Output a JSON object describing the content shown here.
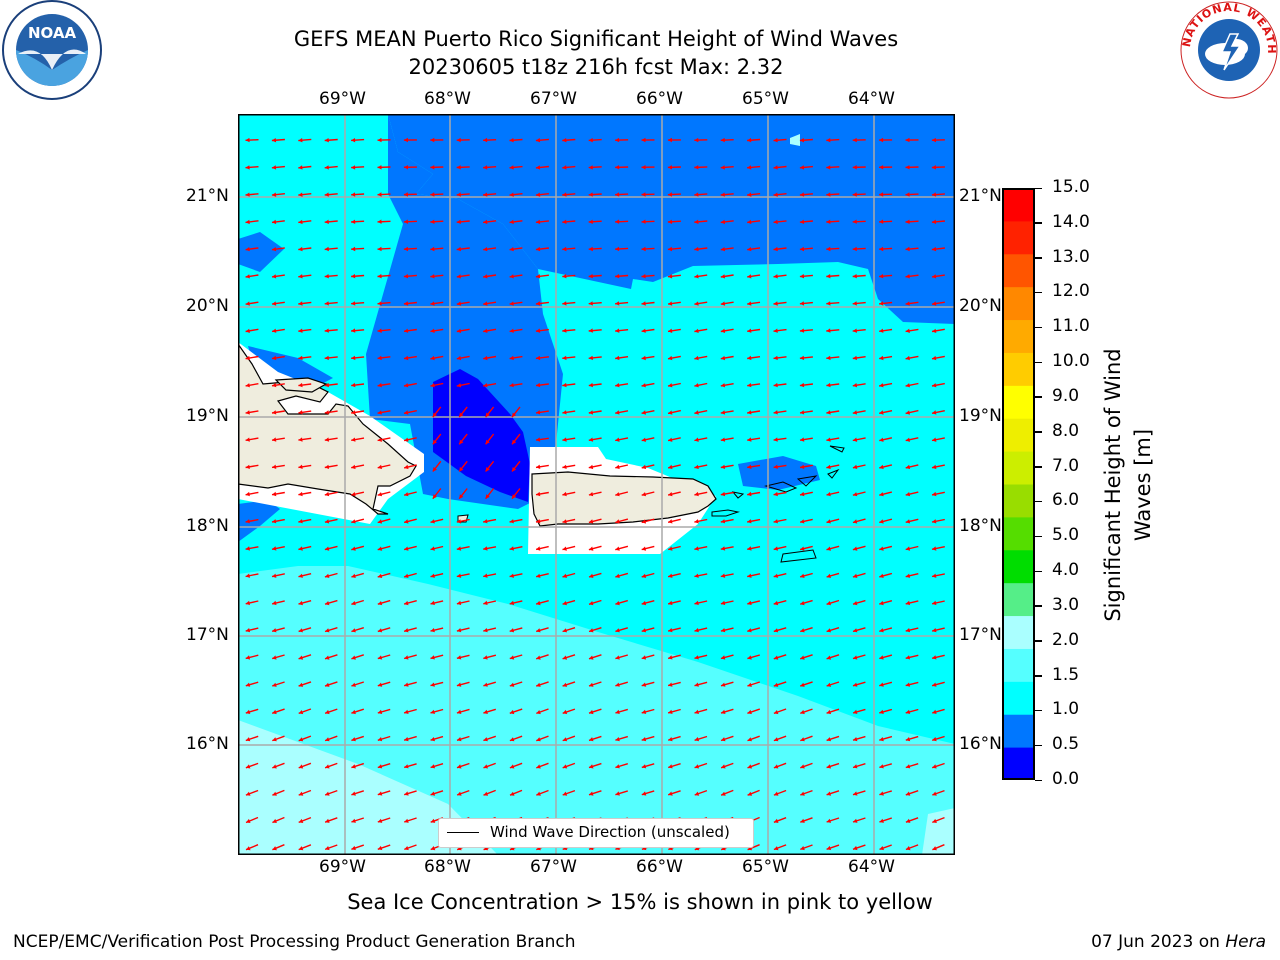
{
  "title_line1": "GEFS MEAN Puerto Rico Significant Height of Wind Waves",
  "title_line2": "20230605 t18z 216h fcst   Max: 2.32",
  "lon_labels": [
    "69°W",
    "68°W",
    "67°W",
    "66°W",
    "65°W",
    "64°W"
  ],
  "lat_labels": [
    "21°N",
    "20°N",
    "19°N",
    "18°N",
    "17°N",
    "16°N"
  ],
  "colorbar": {
    "label": "Significant Height of Wind Waves [m]",
    "ticks": [
      "0.0",
      "0.5",
      "1.0",
      "1.5",
      "2.0",
      "3.0",
      "4.0",
      "5.0",
      "6.0",
      "7.0",
      "8.0",
      "9.0",
      "10.0",
      "11.0",
      "12.0",
      "13.0",
      "14.0",
      "15.0"
    ],
    "colors": [
      "#0000ff",
      "#0077ff",
      "#00ffff",
      "#55ffff",
      "#aaffff",
      "#55ee88",
      "#00dd00",
      "#55dd00",
      "#99dd00",
      "#ccee00",
      "#eeee00",
      "#ffff00",
      "#ffcc00",
      "#ffaa00",
      "#ff8800",
      "#ff5500",
      "#ff2200",
      "#ff0000"
    ]
  },
  "legend_text": "Wind Wave Direction (unscaled)",
  "footer_note": "Sea Ice Concentration > 15% is shown in pink to yellow",
  "credit_left": "NCEP/EMC/Verification Post Processing Product Generation Branch",
  "credit_date": "07 Jun 2023 on ",
  "credit_machine": "Hera",
  "logo_left_text": "NOAA",
  "logo_right_text": "NATIONAL WEATHER SERVICE"
}
